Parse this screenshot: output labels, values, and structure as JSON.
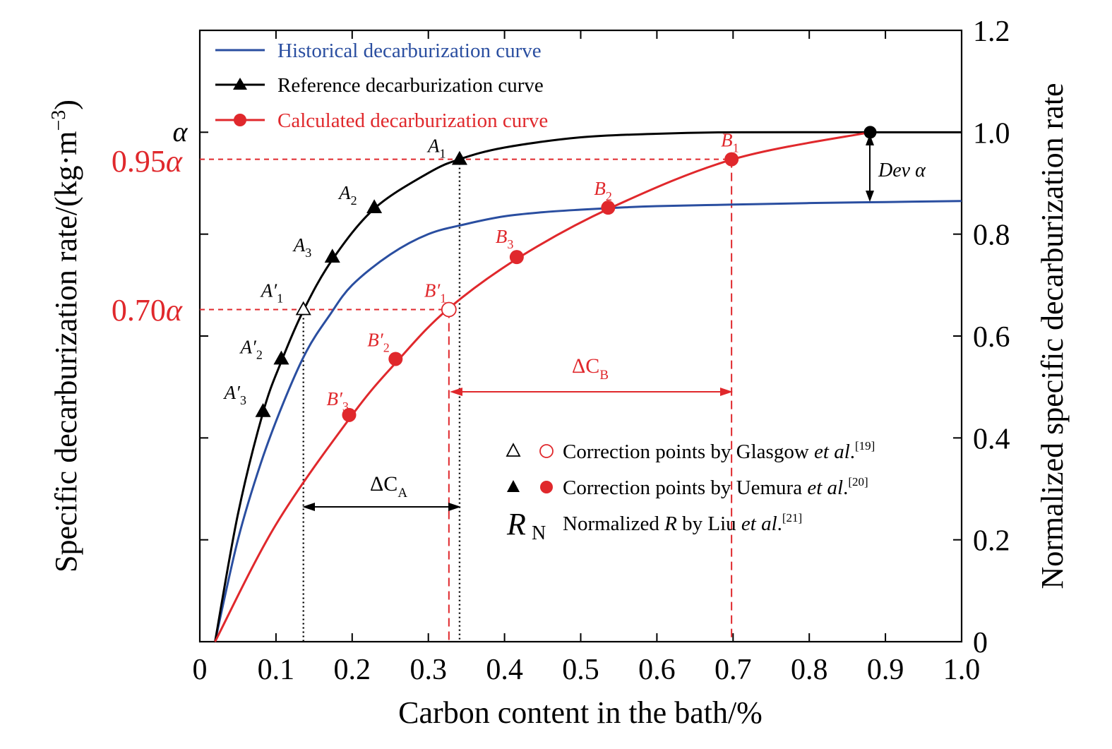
{
  "chart_data": {
    "type": "line",
    "xlabel": "Carbon content in the bath/%",
    "ylabel_left": "Specific decarburization rate/(kg·m",
    "ylabel_left_sup": "−3",
    "ylabel_left_close": ")",
    "ylabel_right": "Normalized specific decarburization rate",
    "xlim": [
      0,
      1.0
    ],
    "ylim_right": [
      0,
      1.2
    ],
    "x_ticks": [
      "0",
      "0.1",
      "0.2",
      "0.3",
      "0.4",
      "0.5",
      "0.6",
      "0.7",
      "0.8",
      "0.9",
      "1.0"
    ],
    "y_right_ticks": [
      "0",
      "0.2",
      "0.4",
      "0.6",
      "0.8",
      "1.0",
      "1.2"
    ],
    "y_left_labels": {
      "alpha": "α",
      "p95_num": "0.95",
      "p95_sym": "α",
      "p70_num": "0.70",
      "p70_sym": "α"
    },
    "legend_placement": "top-left",
    "series": [
      {
        "name": "Historical decarburization curve",
        "color": "#2a4ea0",
        "marker": "none",
        "x": [
          0.02,
          0.05,
          0.08,
          0.11,
          0.14,
          0.17,
          0.2,
          0.25,
          0.3,
          0.35,
          0.4,
          0.45,
          0.5,
          0.55,
          0.6,
          0.7,
          0.8,
          0.9,
          1.0
        ],
        "y": [
          0.0,
          0.2,
          0.35,
          0.47,
          0.57,
          0.64,
          0.7,
          0.76,
          0.8,
          0.82,
          0.835,
          0.843,
          0.848,
          0.852,
          0.855,
          0.858,
          0.861,
          0.863,
          0.865
        ]
      },
      {
        "name": "Reference decarburization curve",
        "color": "#000000",
        "marker": "triangle-filled",
        "x": [
          0.02,
          0.05,
          0.083,
          0.107,
          0.136,
          0.174,
          0.229,
          0.3,
          0.341,
          0.4,
          0.5,
          0.6,
          0.7,
          0.88,
          1.0
        ],
        "y": [
          0.0,
          0.25,
          0.45,
          0.55,
          0.65,
          0.75,
          0.85,
          0.92,
          0.947,
          0.97,
          0.99,
          0.997,
          1.0,
          1.0,
          1.0
        ],
        "markers": [
          {
            "label": "A",
            "sub": "1",
            "prime": "",
            "x": 0.341,
            "y": 0.947
          },
          {
            "label": "A",
            "sub": "2",
            "prime": "",
            "x": 0.229,
            "y": 0.852
          },
          {
            "label": "A",
            "sub": "3",
            "prime": "",
            "x": 0.174,
            "y": 0.755
          },
          {
            "label": "A",
            "sub": "1",
            "prime": "′",
            "x": 0.136,
            "y": 0.652,
            "open": true
          },
          {
            "label": "A",
            "sub": "2",
            "prime": "′",
            "x": 0.107,
            "y": 0.555
          },
          {
            "label": "A",
            "sub": "3",
            "prime": "′",
            "x": 0.083,
            "y": 0.452
          }
        ]
      },
      {
        "name": "Calculated decarburization curve",
        "color": "#e0282c",
        "marker": "circle-filled",
        "x": [
          0.02,
          0.1,
          0.2,
          0.26,
          0.325,
          0.42,
          0.54,
          0.7,
          0.88
        ],
        "y": [
          0.0,
          0.23,
          0.445,
          0.552,
          0.652,
          0.755,
          0.852,
          0.947,
          1.0
        ],
        "markers": [
          {
            "label": "B",
            "sub": "1",
            "prime": "",
            "x": 0.698,
            "y": 0.947
          },
          {
            "label": "B",
            "sub": "2",
            "prime": "",
            "x": 0.536,
            "y": 0.852
          },
          {
            "label": "B",
            "sub": "3",
            "prime": "",
            "x": 0.416,
            "y": 0.755
          },
          {
            "label": "B",
            "sub": "1",
            "prime": "′",
            "x": 0.327,
            "y": 0.652,
            "open": true
          },
          {
            "label": "B",
            "sub": "2",
            "prime": "′",
            "x": 0.257,
            "y": 0.555
          },
          {
            "label": "B",
            "sub": "3",
            "prime": "′",
            "x": 0.196,
            "y": 0.445
          }
        ]
      }
    ],
    "annotations": {
      "dev_alpha": "Dev α",
      "delta_ca_main": "ΔC",
      "delta_ca_sub": "A",
      "delta_cb_main": "ΔC",
      "delta_cb_sub": "B",
      "legend2": [
        {
          "text": "Correction points by Glasgow ",
          "ital": "et al",
          "tail": ".",
          "ref": "[19]"
        },
        {
          "text": "Correction points by Uemura ",
          "ital": "et al",
          "tail": ".",
          "ref": "[20]"
        },
        {
          "big": "R",
          "bigsub": "N",
          "text": "Normalized ",
          "ital2": "R",
          "text2": " by Liu ",
          "ital": "et al",
          "tail": ".",
          "ref": "[21]"
        }
      ]
    }
  }
}
